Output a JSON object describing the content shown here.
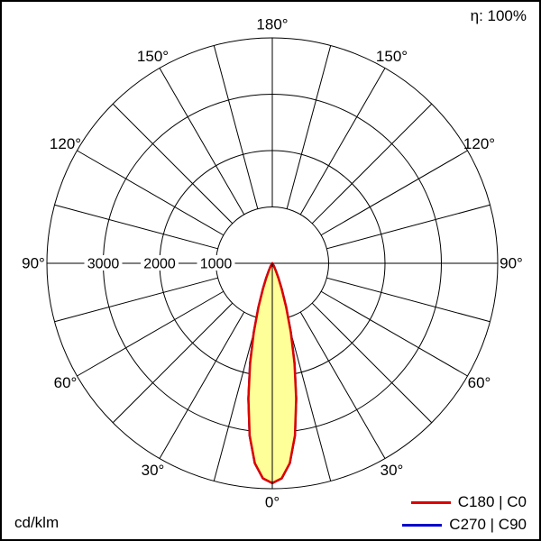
{
  "chart_data": {
    "type": "polar",
    "efficiency_label": "η: 100%",
    "unit_label": "cd/klm",
    "radial_max": 4000,
    "ring_step": 1000,
    "radial_tick_labels": [
      "3000",
      "2000",
      "1000"
    ],
    "radial_tick_values": [
      3000,
      2000,
      1000
    ],
    "angle_step_deg": 15,
    "angle_labels": [
      "0°",
      "30°",
      "60°",
      "90°",
      "120°",
      "150°",
      "180°"
    ],
    "grid_color": "#000000",
    "legend_position": "bottom-right",
    "series": [
      {
        "name": "C180 | C0",
        "color": "#dd0000",
        "fill": "#ffff99",
        "gamma_deg": [
          0,
          2.5,
          5,
          7.5,
          10,
          12.5,
          15,
          17.5,
          20,
          22.5,
          25,
          27.5,
          30,
          35,
          40,
          45,
          60,
          75,
          90,
          120,
          150,
          180
        ],
        "values_cd_per_klm": [
          3900,
          3820,
          3560,
          3080,
          2440,
          1820,
          1270,
          820,
          490,
          280,
          150,
          80,
          45,
          15,
          5,
          0,
          0,
          0,
          0,
          0,
          0,
          0
        ]
      },
      {
        "name": "C270 | C90",
        "color": "#0000cc",
        "fill": "none",
        "gamma_deg": [
          0,
          2.5,
          5,
          7.5,
          10,
          12.5,
          15,
          17.5,
          20,
          22.5,
          25,
          27.5,
          30,
          35,
          40,
          45,
          60,
          75,
          90,
          120,
          150,
          180
        ],
        "values_cd_per_klm": [
          3900,
          3820,
          3560,
          3080,
          2440,
          1820,
          1270,
          820,
          490,
          280,
          150,
          80,
          45,
          15,
          5,
          0,
          0,
          0,
          0,
          0,
          0,
          0
        ]
      }
    ]
  }
}
